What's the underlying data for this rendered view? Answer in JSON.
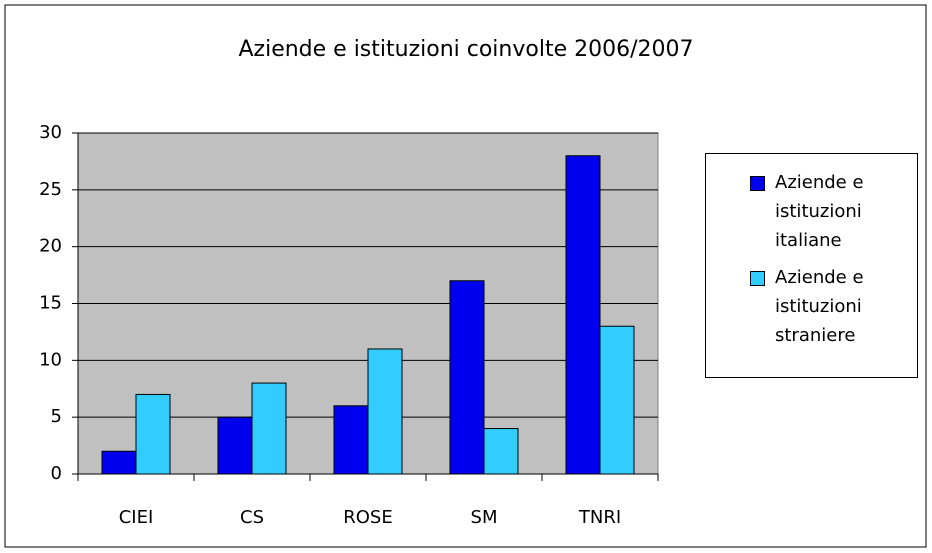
{
  "chart_data": {
    "type": "bar",
    "title": "Aziende e istituzioni coinvolte 2006/2007",
    "categories": [
      "CIEI",
      "CS",
      "ROSE",
      "SM",
      "TNRI"
    ],
    "series": [
      {
        "name": "Aziende e istituzioni italiane",
        "color": "#0000ee",
        "values": [
          2,
          5,
          6,
          17,
          28
        ]
      },
      {
        "name": "Aziende e istituzioni straniere",
        "color": "#33ccff",
        "values": [
          7,
          8,
          11,
          4,
          13
        ]
      }
    ],
    "ylim": [
      0,
      30
    ],
    "yticks": [
      0,
      5,
      10,
      15,
      20,
      25,
      30
    ],
    "grid": true,
    "legend": "right"
  }
}
